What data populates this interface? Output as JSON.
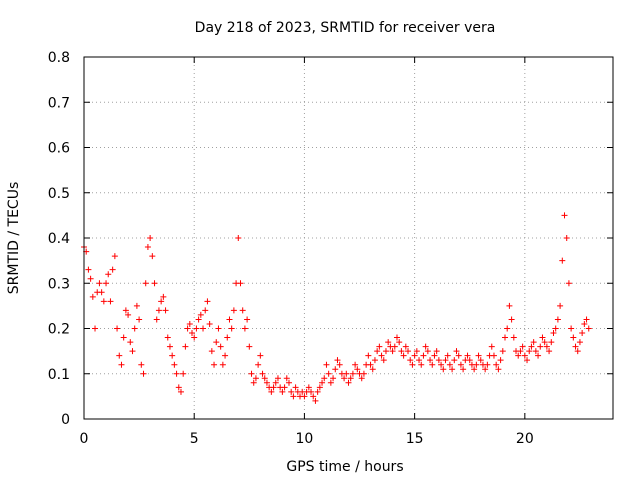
{
  "chart_data": {
    "type": "scatter",
    "title": "Day 218 of 2023, SRMTID for receiver vera",
    "xlabel": "GPS time / hours",
    "ylabel": "SRMTID / TECUs",
    "xlim": [
      0,
      24
    ],
    "ylim": [
      0,
      0.8
    ],
    "xticks": [
      0,
      5,
      10,
      15,
      20
    ],
    "xtick_labels": [
      "0",
      "5",
      "10",
      "15",
      "20"
    ],
    "yticks": [
      0,
      0.1,
      0.2,
      0.3,
      0.4,
      0.5,
      0.6,
      0.7,
      0.8
    ],
    "ytick_labels": [
      "0",
      "0.1",
      "0.2",
      "0.3",
      "0.4",
      "0.5",
      "0.6",
      "0.7",
      "0.8"
    ],
    "grid": true,
    "marker": "+",
    "color": "#ff0000",
    "sampling_interval_hours": 0.0083,
    "series": [
      {
        "name": "SRMTID",
        "points": [
          [
            0.0,
            0.38
          ],
          [
            0.1,
            0.37
          ],
          [
            0.2,
            0.33
          ],
          [
            0.3,
            0.31
          ],
          [
            0.4,
            0.27
          ],
          [
            0.5,
            0.2
          ],
          [
            0.6,
            0.28
          ],
          [
            0.7,
            0.3
          ],
          [
            0.8,
            0.28
          ],
          [
            0.9,
            0.26
          ],
          [
            1.0,
            0.3
          ],
          [
            1.1,
            0.32
          ],
          [
            1.2,
            0.26
          ],
          [
            1.3,
            0.33
          ],
          [
            1.4,
            0.36
          ],
          [
            1.5,
            0.2
          ],
          [
            1.6,
            0.14
          ],
          [
            1.7,
            0.12
          ],
          [
            1.8,
            0.18
          ],
          [
            1.9,
            0.24
          ],
          [
            2.0,
            0.23
          ],
          [
            2.1,
            0.17
          ],
          [
            2.2,
            0.15
          ],
          [
            2.3,
            0.2
          ],
          [
            2.4,
            0.25
          ],
          [
            2.5,
            0.22
          ],
          [
            2.6,
            0.12
          ],
          [
            2.7,
            0.1
          ],
          [
            2.8,
            0.3
          ],
          [
            2.9,
            0.38
          ],
          [
            3.0,
            0.4
          ],
          [
            3.1,
            0.36
          ],
          [
            3.2,
            0.3
          ],
          [
            3.3,
            0.22
          ],
          [
            3.4,
            0.24
          ],
          [
            3.5,
            0.26
          ],
          [
            3.6,
            0.27
          ],
          [
            3.7,
            0.24
          ],
          [
            3.8,
            0.18
          ],
          [
            3.9,
            0.16
          ],
          [
            4.0,
            0.14
          ],
          [
            4.1,
            0.12
          ],
          [
            4.2,
            0.1
          ],
          [
            4.3,
            0.07
          ],
          [
            4.4,
            0.06
          ],
          [
            4.5,
            0.1
          ],
          [
            4.6,
            0.16
          ],
          [
            4.7,
            0.2
          ],
          [
            4.8,
            0.21
          ],
          [
            4.9,
            0.19
          ],
          [
            5.0,
            0.18
          ],
          [
            5.1,
            0.2
          ],
          [
            5.2,
            0.22
          ],
          [
            5.3,
            0.23
          ],
          [
            5.4,
            0.2
          ],
          [
            5.5,
            0.24
          ],
          [
            5.6,
            0.26
          ],
          [
            5.7,
            0.21
          ],
          [
            5.8,
            0.15
          ],
          [
            5.9,
            0.12
          ],
          [
            6.0,
            0.17
          ],
          [
            6.1,
            0.2
          ],
          [
            6.2,
            0.16
          ],
          [
            6.3,
            0.12
          ],
          [
            6.4,
            0.14
          ],
          [
            6.5,
            0.18
          ],
          [
            6.6,
            0.22
          ],
          [
            6.7,
            0.2
          ],
          [
            6.8,
            0.24
          ],
          [
            6.9,
            0.3
          ],
          [
            7.0,
            0.4
          ],
          [
            7.1,
            0.3
          ],
          [
            7.2,
            0.24
          ],
          [
            7.3,
            0.2
          ],
          [
            7.4,
            0.22
          ],
          [
            7.5,
            0.16
          ],
          [
            7.6,
            0.1
          ],
          [
            7.7,
            0.08
          ],
          [
            7.8,
            0.09
          ],
          [
            7.9,
            0.12
          ],
          [
            8.0,
            0.14
          ],
          [
            8.1,
            0.1
          ],
          [
            8.2,
            0.09
          ],
          [
            8.3,
            0.08
          ],
          [
            8.4,
            0.07
          ],
          [
            8.5,
            0.06
          ],
          [
            8.6,
            0.07
          ],
          [
            8.7,
            0.08
          ],
          [
            8.8,
            0.09
          ],
          [
            8.9,
            0.07
          ],
          [
            9.0,
            0.06
          ],
          [
            9.1,
            0.07
          ],
          [
            9.2,
            0.09
          ],
          [
            9.3,
            0.08
          ],
          [
            9.4,
            0.06
          ],
          [
            9.5,
            0.05
          ],
          [
            9.6,
            0.07
          ],
          [
            9.7,
            0.06
          ],
          [
            9.8,
            0.05
          ],
          [
            9.9,
            0.06
          ],
          [
            10.0,
            0.05
          ],
          [
            10.1,
            0.06
          ],
          [
            10.2,
            0.07
          ],
          [
            10.3,
            0.06
          ],
          [
            10.4,
            0.05
          ],
          [
            10.5,
            0.04
          ],
          [
            10.6,
            0.06
          ],
          [
            10.7,
            0.07
          ],
          [
            10.8,
            0.08
          ],
          [
            10.9,
            0.09
          ],
          [
            11.0,
            0.12
          ],
          [
            11.1,
            0.1
          ],
          [
            11.2,
            0.08
          ],
          [
            11.3,
            0.09
          ],
          [
            11.4,
            0.11
          ],
          [
            11.5,
            0.13
          ],
          [
            11.6,
            0.12
          ],
          [
            11.7,
            0.1
          ],
          [
            11.8,
            0.09
          ],
          [
            11.9,
            0.1
          ],
          [
            12.0,
            0.08
          ],
          [
            12.1,
            0.09
          ],
          [
            12.2,
            0.1
          ],
          [
            12.3,
            0.12
          ],
          [
            12.4,
            0.11
          ],
          [
            12.5,
            0.1
          ],
          [
            12.6,
            0.09
          ],
          [
            12.7,
            0.1
          ],
          [
            12.8,
            0.12
          ],
          [
            12.9,
            0.14
          ],
          [
            13.0,
            0.12
          ],
          [
            13.1,
            0.11
          ],
          [
            13.2,
            0.13
          ],
          [
            13.3,
            0.15
          ],
          [
            13.4,
            0.16
          ],
          [
            13.5,
            0.14
          ],
          [
            13.6,
            0.13
          ],
          [
            13.7,
            0.15
          ],
          [
            13.8,
            0.17
          ],
          [
            13.9,
            0.16
          ],
          [
            14.0,
            0.15
          ],
          [
            14.1,
            0.16
          ],
          [
            14.2,
            0.18
          ],
          [
            14.3,
            0.17
          ],
          [
            14.4,
            0.15
          ],
          [
            14.5,
            0.14
          ],
          [
            14.6,
            0.16
          ],
          [
            14.7,
            0.15
          ],
          [
            14.8,
            0.13
          ],
          [
            14.9,
            0.12
          ],
          [
            15.0,
            0.14
          ],
          [
            15.1,
            0.15
          ],
          [
            15.2,
            0.13
          ],
          [
            15.3,
            0.12
          ],
          [
            15.4,
            0.14
          ],
          [
            15.5,
            0.16
          ],
          [
            15.6,
            0.15
          ],
          [
            15.7,
            0.13
          ],
          [
            15.8,
            0.12
          ],
          [
            15.9,
            0.14
          ],
          [
            16.0,
            0.15
          ],
          [
            16.1,
            0.13
          ],
          [
            16.2,
            0.12
          ],
          [
            16.3,
            0.11
          ],
          [
            16.4,
            0.13
          ],
          [
            16.5,
            0.14
          ],
          [
            16.6,
            0.12
          ],
          [
            16.7,
            0.11
          ],
          [
            16.8,
            0.13
          ],
          [
            16.9,
            0.15
          ],
          [
            17.0,
            0.14
          ],
          [
            17.1,
            0.12
          ],
          [
            17.2,
            0.11
          ],
          [
            17.3,
            0.13
          ],
          [
            17.4,
            0.14
          ],
          [
            17.5,
            0.13
          ],
          [
            17.6,
            0.12
          ],
          [
            17.7,
            0.11
          ],
          [
            17.8,
            0.12
          ],
          [
            17.9,
            0.14
          ],
          [
            18.0,
            0.13
          ],
          [
            18.1,
            0.12
          ],
          [
            18.2,
            0.11
          ],
          [
            18.3,
            0.12
          ],
          [
            18.4,
            0.14
          ],
          [
            18.5,
            0.16
          ],
          [
            18.6,
            0.14
          ],
          [
            18.7,
            0.12
          ],
          [
            18.8,
            0.11
          ],
          [
            18.9,
            0.13
          ],
          [
            19.0,
            0.15
          ],
          [
            19.1,
            0.18
          ],
          [
            19.2,
            0.2
          ],
          [
            19.3,
            0.25
          ],
          [
            19.4,
            0.22
          ],
          [
            19.5,
            0.18
          ],
          [
            19.6,
            0.15
          ],
          [
            19.7,
            0.14
          ],
          [
            19.8,
            0.15
          ],
          [
            19.9,
            0.16
          ],
          [
            20.0,
            0.14
          ],
          [
            20.1,
            0.13
          ],
          [
            20.2,
            0.15
          ],
          [
            20.3,
            0.16
          ],
          [
            20.4,
            0.17
          ],
          [
            20.5,
            0.15
          ],
          [
            20.6,
            0.14
          ],
          [
            20.7,
            0.16
          ],
          [
            20.8,
            0.18
          ],
          [
            20.9,
            0.17
          ],
          [
            21.0,
            0.16
          ],
          [
            21.1,
            0.15
          ],
          [
            21.2,
            0.17
          ],
          [
            21.3,
            0.19
          ],
          [
            21.4,
            0.2
          ],
          [
            21.5,
            0.22
          ],
          [
            21.6,
            0.25
          ],
          [
            21.7,
            0.35
          ],
          [
            21.8,
            0.45
          ],
          [
            21.9,
            0.4
          ],
          [
            22.0,
            0.3
          ],
          [
            22.1,
            0.2
          ],
          [
            22.2,
            0.18
          ],
          [
            22.3,
            0.16
          ],
          [
            22.4,
            0.15
          ],
          [
            22.5,
            0.17
          ],
          [
            22.6,
            0.19
          ],
          [
            22.7,
            0.21
          ],
          [
            22.8,
            0.22
          ],
          [
            22.9,
            0.2
          ]
        ]
      }
    ]
  }
}
